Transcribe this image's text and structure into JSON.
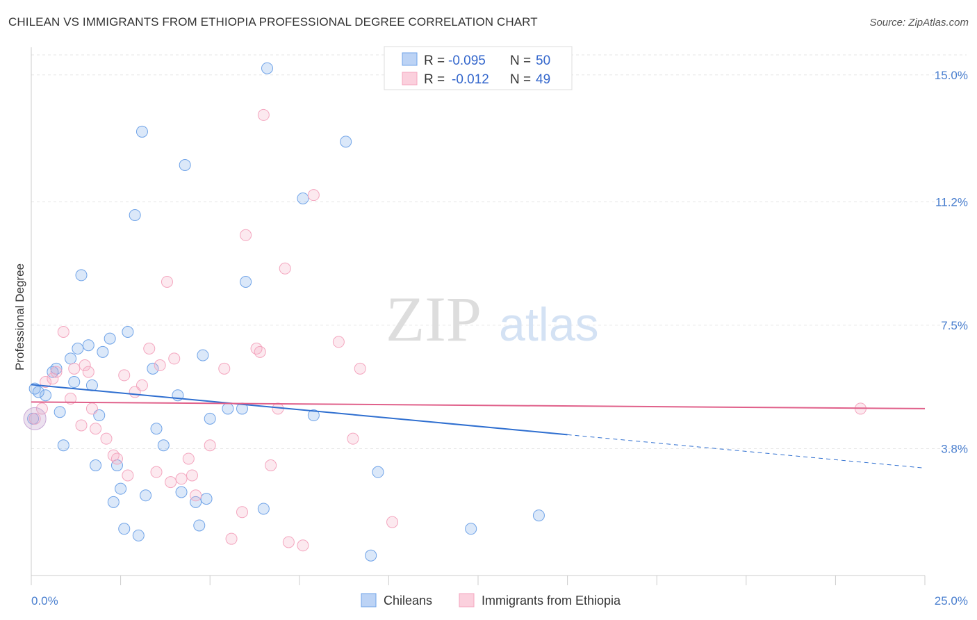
{
  "title": "CHILEAN VS IMMIGRANTS FROM ETHIOPIA PROFESSIONAL DEGREE CORRELATION CHART",
  "source": "Source: ZipAtlas.com",
  "watermark": {
    "zip": "ZIP",
    "atlas": "atlas"
  },
  "chart_data": {
    "type": "scatter",
    "ylabel": "Professional Degree",
    "xlabel": "",
    "xlim": [
      0,
      25
    ],
    "ylim": [
      0,
      15.6
    ],
    "x_tick_labels": [
      "0.0%",
      "25.0%"
    ],
    "y_ticks": [
      3.8,
      7.5,
      11.2,
      15.0
    ],
    "y_tick_labels": [
      "3.8%",
      "7.5%",
      "11.2%",
      "15.0%"
    ],
    "grid": true,
    "legend_position": "top-center",
    "series": [
      {
        "name": "Chileans",
        "color": "#6fa3e8",
        "R_label": "R =",
        "R": "-0.095",
        "N_label": "N =",
        "N": "50",
        "trend": {
          "x0": 0.0,
          "y0": 5.72,
          "x1": 15.0,
          "y1": 4.22,
          "dash_to_x": 25.0,
          "dash_to_y": 3.22
        },
        "points": [
          [
            0.1,
            5.6
          ],
          [
            0.2,
            5.5
          ],
          [
            0.4,
            5.4
          ],
          [
            0.6,
            6.1
          ],
          [
            0.7,
            6.2
          ],
          [
            0.8,
            4.9
          ],
          [
            0.9,
            3.9
          ],
          [
            1.1,
            6.5
          ],
          [
            1.2,
            5.8
          ],
          [
            1.3,
            6.8
          ],
          [
            1.4,
            9.0
          ],
          [
            1.6,
            6.9
          ],
          [
            1.7,
            5.7
          ],
          [
            1.8,
            3.3
          ],
          [
            1.9,
            4.8
          ],
          [
            2.0,
            6.7
          ],
          [
            2.2,
            7.1
          ],
          [
            2.3,
            2.2
          ],
          [
            2.4,
            3.3
          ],
          [
            2.5,
            2.6
          ],
          [
            2.6,
            1.4
          ],
          [
            2.7,
            7.3
          ],
          [
            2.9,
            10.8
          ],
          [
            3.0,
            1.2
          ],
          [
            3.1,
            13.3
          ],
          [
            3.2,
            2.4
          ],
          [
            3.4,
            6.2
          ],
          [
            3.5,
            4.4
          ],
          [
            3.7,
            3.9
          ],
          [
            4.1,
            5.4
          ],
          [
            4.2,
            2.5
          ],
          [
            4.3,
            12.3
          ],
          [
            4.6,
            2.2
          ],
          [
            4.7,
            1.5
          ],
          [
            4.8,
            6.6
          ],
          [
            4.9,
            2.3
          ],
          [
            5.0,
            4.7
          ],
          [
            5.5,
            5.0
          ],
          [
            5.9,
            5.0
          ],
          [
            6.0,
            8.8
          ],
          [
            6.5,
            2.0
          ],
          [
            6.6,
            15.2
          ],
          [
            7.6,
            11.3
          ],
          [
            7.9,
            4.8
          ],
          [
            8.8,
            13.0
          ],
          [
            9.5,
            0.6
          ],
          [
            9.7,
            3.1
          ],
          [
            12.3,
            1.4
          ],
          [
            14.2,
            1.8
          ],
          [
            0.05,
            4.7
          ]
        ]
      },
      {
        "name": "Immigrants from Ethiopia",
        "color": "#f4a6bf",
        "R_label": "R =",
        "R": "-0.012",
        "N_label": "N =",
        "N": "49",
        "trend": {
          "x0": 0.0,
          "y0": 5.2,
          "x1": 25.0,
          "y1": 5.0
        },
        "points": [
          [
            0.1,
            4.7
          ],
          [
            0.3,
            5.0
          ],
          [
            0.4,
            5.8
          ],
          [
            0.7,
            6.1
          ],
          [
            0.9,
            7.3
          ],
          [
            1.1,
            5.3
          ],
          [
            1.2,
            6.2
          ],
          [
            1.4,
            4.5
          ],
          [
            1.6,
            6.1
          ],
          [
            1.7,
            5.0
          ],
          [
            1.8,
            4.4
          ],
          [
            2.1,
            4.1
          ],
          [
            2.3,
            3.6
          ],
          [
            2.4,
            3.5
          ],
          [
            2.6,
            6.0
          ],
          [
            2.7,
            3.0
          ],
          [
            2.9,
            5.5
          ],
          [
            3.1,
            5.7
          ],
          [
            3.3,
            6.8
          ],
          [
            3.5,
            3.1
          ],
          [
            3.6,
            6.3
          ],
          [
            3.8,
            8.8
          ],
          [
            3.9,
            2.8
          ],
          [
            4.0,
            6.5
          ],
          [
            4.2,
            2.9
          ],
          [
            4.4,
            3.5
          ],
          [
            4.5,
            3.0
          ],
          [
            4.6,
            2.4
          ],
          [
            5.0,
            3.9
          ],
          [
            5.4,
            6.2
          ],
          [
            5.6,
            1.1
          ],
          [
            5.9,
            1.9
          ],
          [
            6.0,
            10.2
          ],
          [
            6.3,
            6.8
          ],
          [
            6.4,
            6.7
          ],
          [
            6.5,
            13.8
          ],
          [
            6.7,
            3.3
          ],
          [
            6.9,
            5.0
          ],
          [
            7.1,
            9.2
          ],
          [
            7.2,
            1.0
          ],
          [
            7.6,
            0.9
          ],
          [
            7.9,
            11.4
          ],
          [
            8.6,
            7.0
          ],
          [
            9.0,
            4.1
          ],
          [
            9.2,
            6.2
          ],
          [
            10.1,
            1.6
          ],
          [
            23.2,
            5.0
          ],
          [
            0.6,
            5.9
          ],
          [
            1.5,
            6.3
          ]
        ]
      }
    ]
  }
}
